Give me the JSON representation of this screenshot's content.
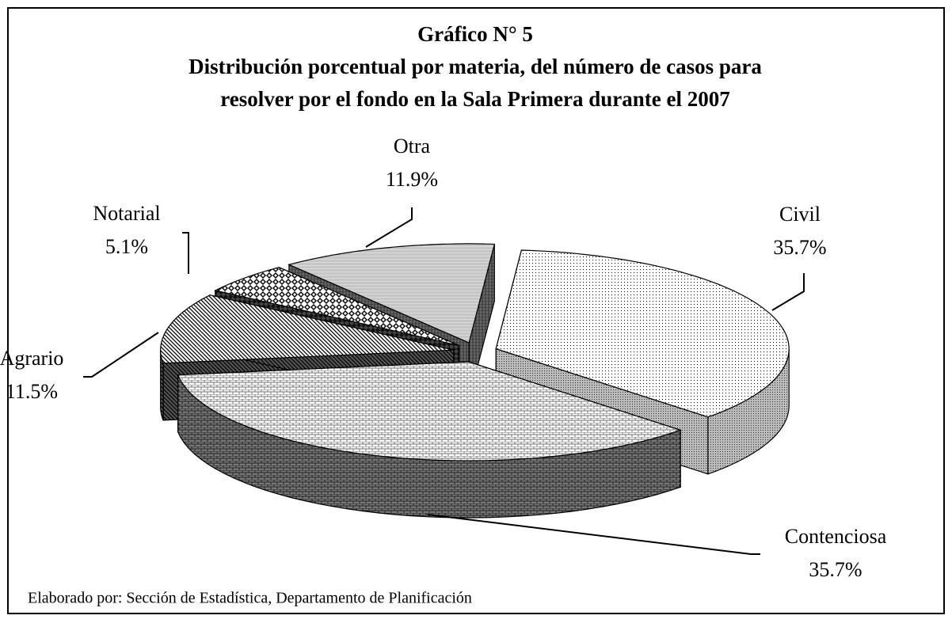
{
  "chart_data": {
    "type": "pie",
    "title": "Gráfico N° 5",
    "subtitle": [
      "Distribución porcentual por materia, del número de casos para",
      "resolver por el fondo en la Sala Primera durante el 2007"
    ],
    "categories": [
      "Civil",
      "Contenciosa",
      "Agrario",
      "Notarial",
      "Otra"
    ],
    "values": [
      35.7,
      35.7,
      11.5,
      5.1,
      11.9
    ],
    "value_labels": [
      "35.7%",
      "35.7%",
      "11.5%",
      "5.1%",
      "11.9%"
    ],
    "source": "Elaborado por: Sección de Estadística, Departamento de Planificación"
  }
}
